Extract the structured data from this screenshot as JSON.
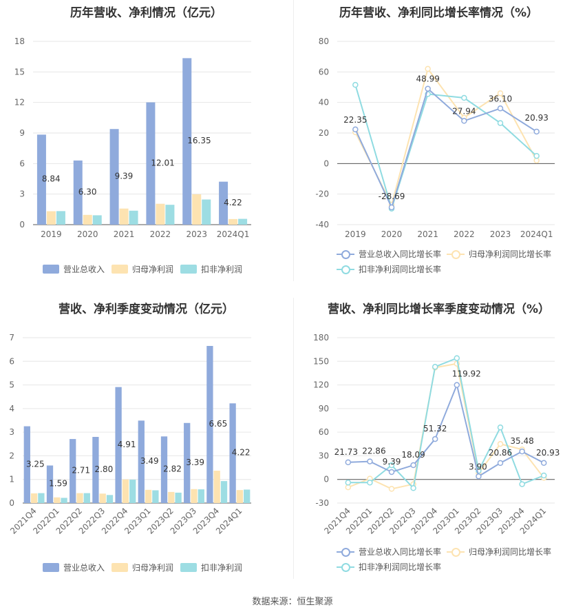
{
  "colors": {
    "revenue": "#8faadc",
    "parent_profit": "#fde3b1",
    "deducted_profit": "#9ddde3",
    "revenue_line": "#8faadc",
    "parent_line": "#fde3b1",
    "deducted_line": "#8fdbe1"
  },
  "footer": "数据来源：恒生聚源",
  "chart_data": [
    {
      "type": "bar",
      "title": "历年营收、净利情况（亿元）",
      "categories": [
        "2019",
        "2020",
        "2021",
        "2022",
        "2023",
        "2024Q1"
      ],
      "ylim": [
        0,
        18
      ],
      "yticks": [
        0,
        3,
        6,
        9,
        12,
        15,
        18
      ],
      "grid": true,
      "legend_position": "bottom",
      "series": [
        {
          "name": "营业总收入",
          "values": [
            8.84,
            6.3,
            9.39,
            12.01,
            16.35,
            4.22
          ],
          "labels": [
            "8.84",
            "6.30",
            "9.39",
            "12.01",
            "16.35",
            "4.22"
          ]
        },
        {
          "name": "归母净利润",
          "values": [
            1.32,
            0.96,
            1.58,
            2.05,
            2.98,
            0.55
          ]
        },
        {
          "name": "扣非净利润",
          "values": [
            1.33,
            0.92,
            1.37,
            1.95,
            2.47,
            0.57
          ]
        }
      ]
    },
    {
      "type": "line",
      "title": "历年营收、净利同比增长率情况（%）",
      "categories": [
        "2019",
        "2020",
        "2021",
        "2022",
        "2023",
        "2024Q1"
      ],
      "ylim": [
        -40,
        80
      ],
      "yticks": [
        -40,
        -20,
        0,
        20,
        40,
        60,
        80
      ],
      "grid": true,
      "legend_position": "bottom",
      "series": [
        {
          "name": "营业总收入同比增长率",
          "values": [
            22.35,
            -28.69,
            48.99,
            27.94,
            36.1,
            20.93
          ],
          "labels": [
            "22.35",
            "-28.69",
            "48.99",
            "27.94",
            "36.10",
            "20.93"
          ]
        },
        {
          "name": "归母净利润同比增长率",
          "values": [
            20.5,
            -27.0,
            62.0,
            30.0,
            46.0,
            2.0
          ]
        },
        {
          "name": "扣非净利润同比增长率",
          "values": [
            51.5,
            -29.5,
            45.5,
            43.0,
            26.5,
            5.0
          ]
        }
      ]
    },
    {
      "type": "bar",
      "title": "营收、净利季度变动情况（亿元）",
      "categories": [
        "2021Q4",
        "2022Q1",
        "2022Q2",
        "2022Q3",
        "2022Q4",
        "2023Q1",
        "2023Q2",
        "2023Q3",
        "2023Q4",
        "2024Q1"
      ],
      "ylim": [
        0,
        7
      ],
      "yticks": [
        0,
        1,
        2,
        3,
        4,
        5,
        6,
        7
      ],
      "grid": true,
      "legend_position": "bottom",
      "series": [
        {
          "name": "营业总收入",
          "values": [
            3.25,
            1.59,
            2.71,
            2.8,
            4.91,
            3.49,
            2.82,
            3.39,
            6.65,
            4.22
          ],
          "labels": [
            "3.25",
            "1.59",
            "2.71",
            "2.80",
            "4.91",
            "3.49",
            "2.82",
            "3.39",
            "6.65",
            "4.22"
          ]
        },
        {
          "name": "归母净利润",
          "values": [
            0.41,
            0.24,
            0.42,
            0.4,
            1.0,
            0.56,
            0.47,
            0.59,
            1.37,
            0.55
          ]
        },
        {
          "name": "扣非净利润",
          "values": [
            0.42,
            0.22,
            0.42,
            0.34,
            0.99,
            0.54,
            0.44,
            0.58,
            0.93,
            0.57
          ]
        }
      ]
    },
    {
      "type": "line",
      "title": "营收、净利同比增长率季度变动情况（%）",
      "categories": [
        "2021Q4",
        "2022Q1",
        "2022Q2",
        "2022Q3",
        "2022Q4",
        "2023Q1",
        "2023Q2",
        "2023Q3",
        "2023Q4",
        "2024Q1"
      ],
      "ylim": [
        -30,
        180
      ],
      "yticks": [
        -30,
        0,
        30,
        60,
        90,
        120,
        150,
        180
      ],
      "grid": true,
      "legend_position": "bottom",
      "series": [
        {
          "name": "营业总收入同比增长率",
          "values": [
            21.73,
            22.86,
            9.39,
            18.09,
            51.32,
            119.92,
            3.9,
            20.86,
            35.48,
            20.93
          ],
          "labels": [
            "21.73",
            "22.86",
            "9.39",
            "18.09",
            "51.32",
            "119.92",
            "3.90",
            "20.86",
            "35.48",
            "20.93"
          ]
        },
        {
          "name": "归母净利润同比增长率",
          "values": [
            -10.0,
            1.0,
            -12.0,
            -6.0,
            142.0,
            147.0,
            8.0,
            45.0,
            38.0,
            2.0
          ]
        },
        {
          "name": "扣非净利润同比增长率",
          "values": [
            -4.0,
            -4.0,
            18.0,
            -11.0,
            143.0,
            154.0,
            11.0,
            66.0,
            -6.0,
            5.0
          ]
        }
      ]
    }
  ]
}
